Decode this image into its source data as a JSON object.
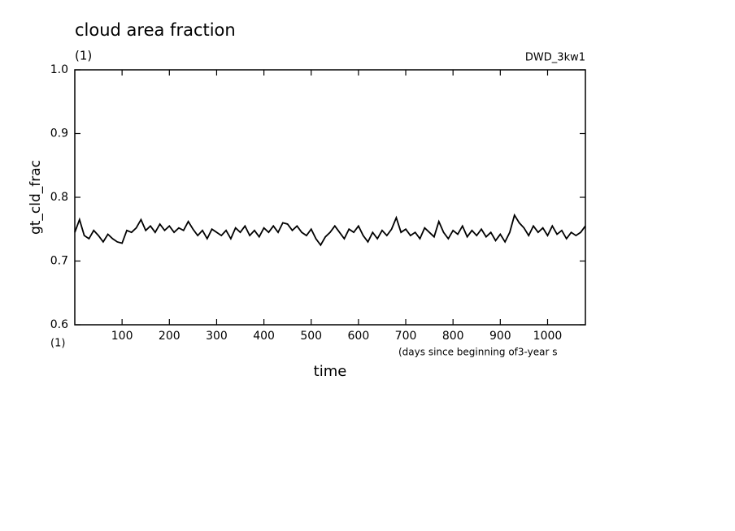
{
  "chart_data": {
    "type": "line",
    "title": "cloud area fraction",
    "subtitle": "(1)",
    "annotation": "DWD_3kw1",
    "y_label": "gt_cld_frac",
    "y_unit": "(1)",
    "x_label": "time",
    "x_note": "(days since beginning of3-year s",
    "xlim": [
      0,
      1080
    ],
    "ylim": [
      0.6,
      1.0
    ],
    "xticks": [
      100,
      200,
      300,
      400,
      500,
      600,
      700,
      800,
      900,
      1000
    ],
    "yticks": [
      0.6,
      0.7,
      0.8,
      0.9,
      {
        "value": 1.0,
        "label": "1.0"
      }
    ],
    "x": [
      0,
      10,
      20,
      30,
      40,
      50,
      60,
      70,
      80,
      90,
      100,
      110,
      120,
      130,
      140,
      150,
      160,
      170,
      180,
      190,
      200,
      210,
      220,
      230,
      240,
      250,
      260,
      270,
      280,
      290,
      300,
      310,
      320,
      330,
      340,
      350,
      360,
      370,
      380,
      390,
      400,
      410,
      420,
      430,
      440,
      450,
      460,
      470,
      480,
      490,
      500,
      510,
      520,
      530,
      540,
      550,
      560,
      570,
      580,
      590,
      600,
      610,
      620,
      630,
      640,
      650,
      660,
      670,
      680,
      690,
      700,
      710,
      720,
      730,
      740,
      750,
      760,
      770,
      780,
      790,
      800,
      810,
      820,
      830,
      840,
      850,
      860,
      870,
      880,
      890,
      900,
      910,
      920,
      930,
      940,
      950,
      960,
      970,
      980,
      990,
      1000,
      1010,
      1020,
      1030,
      1040,
      1050,
      1060,
      1070,
      1080
    ],
    "series": [
      {
        "color": "#000000",
        "values": [
          0.745,
          0.765,
          0.74,
          0.735,
          0.748,
          0.74,
          0.73,
          0.742,
          0.735,
          0.73,
          0.728,
          0.748,
          0.745,
          0.752,
          0.765,
          0.748,
          0.755,
          0.745,
          0.758,
          0.748,
          0.755,
          0.745,
          0.752,
          0.748,
          0.762,
          0.75,
          0.74,
          0.748,
          0.735,
          0.75,
          0.745,
          0.74,
          0.748,
          0.735,
          0.752,
          0.745,
          0.755,
          0.74,
          0.748,
          0.738,
          0.752,
          0.745,
          0.755,
          0.745,
          0.76,
          0.758,
          0.748,
          0.755,
          0.745,
          0.74,
          0.75,
          0.735,
          0.725,
          0.738,
          0.745,
          0.755,
          0.745,
          0.735,
          0.75,
          0.745,
          0.755,
          0.74,
          0.73,
          0.745,
          0.735,
          0.748,
          0.74,
          0.75,
          0.768,
          0.745,
          0.75,
          0.74,
          0.745,
          0.735,
          0.752,
          0.745,
          0.738,
          0.762,
          0.745,
          0.735,
          0.748,
          0.742,
          0.755,
          0.738,
          0.748,
          0.74,
          0.75,
          0.738,
          0.745,
          0.732,
          0.742,
          0.73,
          0.745,
          0.772,
          0.76,
          0.752,
          0.74,
          0.755,
          0.745,
          0.752,
          0.74,
          0.755,
          0.742,
          0.748,
          0.735,
          0.745,
          0.74,
          0.745,
          0.755
        ]
      }
    ]
  }
}
